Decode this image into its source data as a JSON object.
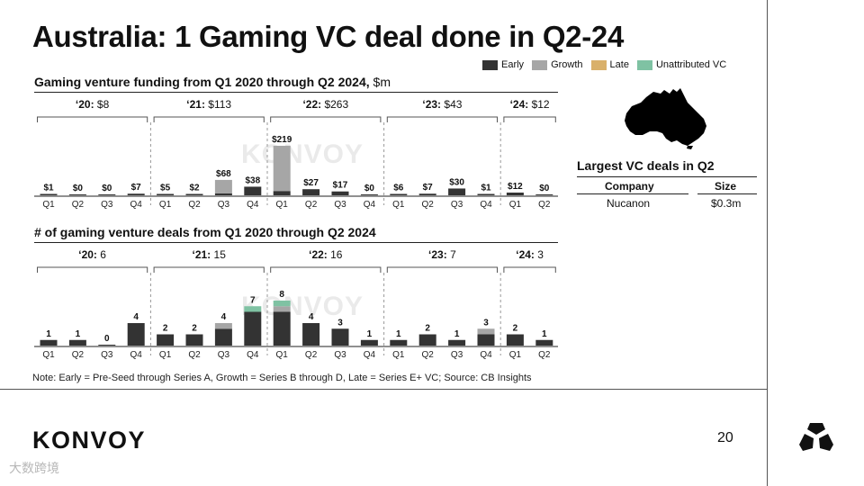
{
  "page": {
    "title": "Australia: 1 Gaming VC deal done in Q2-24",
    "footnote": "Note: Early = Pre-Seed through Series A, Growth = Series B through D, Late = Series E+ VC; Source: CB Insights",
    "brand": "KONVOY",
    "page_number": "20",
    "watermark": "KONVOY",
    "stamp": "大数跨境"
  },
  "legend": [
    {
      "key": "early",
      "label": "Early",
      "color": "#333333"
    },
    {
      "key": "growth",
      "label": "Growth",
      "color": "#a6a6a6"
    },
    {
      "key": "late",
      "label": "Late",
      "color": "#d9b06a"
    },
    {
      "key": "unattributed",
      "label": "Unattributed VC",
      "color": "#7fc2a3"
    }
  ],
  "deals_table": {
    "title": "Largest VC deals in Q2",
    "headers": [
      "Company",
      "Size"
    ],
    "rows": [
      [
        "Nucanon",
        "$0.3m"
      ]
    ]
  },
  "chart_data": [
    {
      "type": "bar",
      "stacked": true,
      "title": "Gaming venture funding from Q1 2020 through Q2 2024,",
      "unit": "$m",
      "categories": [
        "Q1",
        "Q2",
        "Q3",
        "Q4",
        "Q1",
        "Q2",
        "Q3",
        "Q4",
        "Q1",
        "Q2",
        "Q3",
        "Q4",
        "Q1",
        "Q2",
        "Q3",
        "Q4",
        "Q1",
        "Q2"
      ],
      "groups": [
        {
          "year": "‘20:",
          "total": "$8",
          "start": 0,
          "end": 3
        },
        {
          "year": "‘21:",
          "total": "$113",
          "start": 4,
          "end": 7
        },
        {
          "year": "‘22:",
          "total": "$263",
          "start": 8,
          "end": 11
        },
        {
          "year": "‘23:",
          "total": "$43",
          "start": 12,
          "end": 15
        },
        {
          "year": "‘24:",
          "total": "$12",
          "start": 16,
          "end": 17
        }
      ],
      "value_labels": [
        "$1",
        "$0",
        "$0",
        "$7",
        "$5",
        "$2",
        "$68",
        "$38",
        "$219",
        "$27",
        "$17",
        "$0",
        "$6",
        "$7",
        "$30",
        "$1",
        "$12",
        "$0"
      ],
      "series": [
        {
          "name": "Early",
          "values": [
            1,
            0,
            0,
            7,
            5,
            2,
            8,
            38,
            19,
            27,
            17,
            0,
            6,
            7,
            30,
            1,
            12,
            0
          ]
        },
        {
          "name": "Growth",
          "values": [
            0,
            0,
            0,
            0,
            0,
            0,
            60,
            0,
            200,
            0,
            0,
            0,
            0,
            0,
            0,
            0,
            0,
            0
          ]
        },
        {
          "name": "Late",
          "values": [
            0,
            0,
            0,
            0,
            0,
            0,
            0,
            0,
            0,
            0,
            0,
            0,
            0,
            0,
            0,
            0,
            0,
            0
          ]
        },
        {
          "name": "Unattributed VC",
          "values": [
            0,
            0,
            0,
            0,
            0,
            0,
            0,
            0,
            0,
            0,
            0,
            0,
            0,
            0,
            0,
            0,
            0,
            0
          ]
        }
      ],
      "ylim": [
        0,
        219
      ]
    },
    {
      "type": "bar",
      "stacked": true,
      "title": "# of gaming venture deals from Q1 2020 through Q2 2024",
      "categories": [
        "Q1",
        "Q2",
        "Q3",
        "Q4",
        "Q1",
        "Q2",
        "Q3",
        "Q4",
        "Q1",
        "Q2",
        "Q3",
        "Q4",
        "Q1",
        "Q2",
        "Q3",
        "Q4",
        "Q1",
        "Q2"
      ],
      "groups": [
        {
          "year": "‘20:",
          "total": "6",
          "start": 0,
          "end": 3
        },
        {
          "year": "‘21:",
          "total": "15",
          "start": 4,
          "end": 7
        },
        {
          "year": "‘22:",
          "total": "16",
          "start": 8,
          "end": 11
        },
        {
          "year": "‘23:",
          "total": "7",
          "start": 12,
          "end": 15
        },
        {
          "year": "‘24:",
          "total": "3",
          "start": 16,
          "end": 17
        }
      ],
      "value_labels": [
        "1",
        "1",
        "0",
        "4",
        "2",
        "2",
        "4",
        "7",
        "8",
        "4",
        "3",
        "1",
        "1",
        "2",
        "1",
        "3",
        "2",
        "1"
      ],
      "series": [
        {
          "name": "Early",
          "values": [
            1,
            1,
            0,
            4,
            2,
            2,
            3,
            6,
            6,
            4,
            3,
            1,
            1,
            2,
            1,
            2,
            2,
            1
          ]
        },
        {
          "name": "Growth",
          "values": [
            0,
            0,
            0,
            0,
            0,
            0,
            1,
            0,
            1,
            0,
            0,
            0,
            0,
            0,
            0,
            1,
            0,
            0
          ]
        },
        {
          "name": "Late",
          "values": [
            0,
            0,
            0,
            0,
            0,
            0,
            0,
            0,
            0,
            0,
            0,
            0,
            0,
            0,
            0,
            0,
            0,
            0
          ]
        },
        {
          "name": "Unattributed VC",
          "values": [
            0,
            0,
            0,
            0,
            0,
            0,
            0,
            1,
            1,
            0,
            0,
            0,
            0,
            0,
            0,
            0,
            0,
            0
          ]
        }
      ],
      "ylim": [
        0,
        8
      ]
    }
  ]
}
